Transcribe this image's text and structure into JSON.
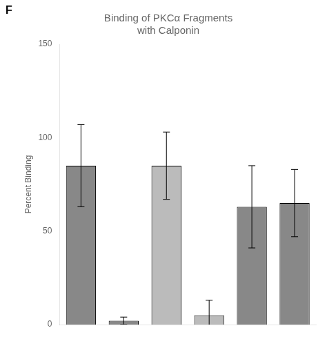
{
  "chart_data": {
    "type": "bar",
    "title": "Binding of PKCα Fragments\nwith Calponin",
    "ylabel": "Percent Binding",
    "categories": [
      null,
      null,
      null,
      null,
      null,
      null
    ],
    "values": [
      85,
      2,
      85,
      5,
      63,
      65
    ],
    "errors": [
      22,
      2,
      18,
      8,
      22,
      18
    ],
    "colors": [
      "#888888",
      "#888888",
      "#bbbbbb",
      "#bbbbbb",
      "#888888",
      "#888888"
    ],
    "ylim": [
      0,
      150
    ],
    "yticks": [
      0,
      50,
      100,
      150
    ],
    "grid": false,
    "tick_labels": "y",
    "annotations": [
      "F"
    ]
  }
}
